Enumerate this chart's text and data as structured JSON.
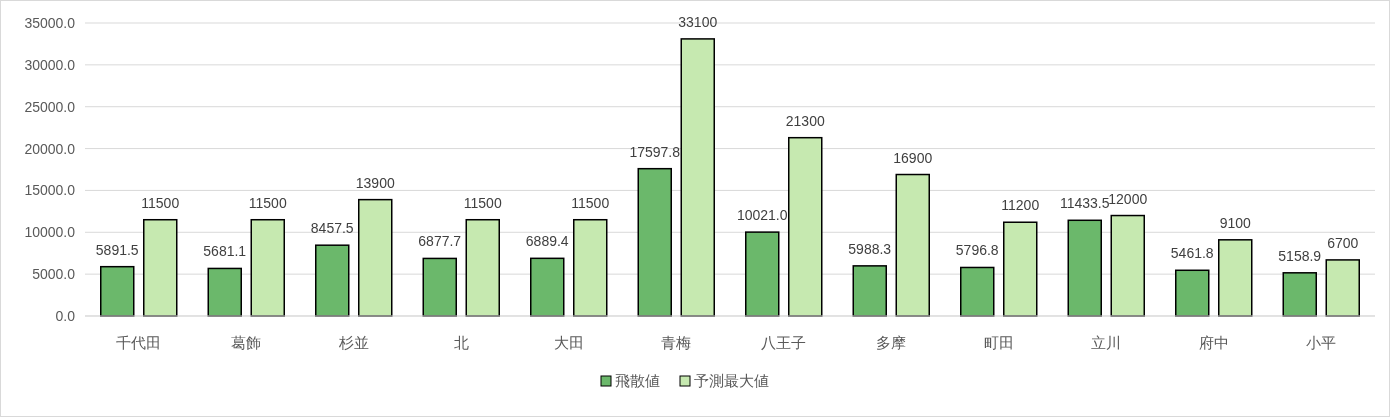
{
  "chart_data": {
    "type": "bar",
    "categories": [
      "千代田",
      "葛飾",
      "杉並",
      "北",
      "大田",
      "青梅",
      "八王子",
      "多摩",
      "町田",
      "立川",
      "府中",
      "小平"
    ],
    "series": [
      {
        "name": "飛散値",
        "color": "#6bb86b",
        "values": [
          5891.5,
          5681.1,
          8457.5,
          6877.7,
          6889.4,
          17597.8,
          10021.0,
          5988.3,
          5796.8,
          11433.5,
          5461.8,
          5158.9
        ],
        "value_labels": [
          "5891.5",
          "5681.1",
          "8457.5",
          "6877.7",
          "6889.4",
          "17597.8",
          "10021.0",
          "5988.3",
          "5796.8",
          "11433.5",
          "5461.8",
          "5158.9"
        ]
      },
      {
        "name": "予測最大値",
        "color": "#c6e9b0",
        "values": [
          11500,
          11500,
          13900,
          11500,
          11500,
          33100,
          21300,
          16900,
          11200,
          12000,
          9100,
          6700
        ],
        "value_labels": [
          "11500",
          "11500",
          "13900",
          "11500",
          "11500",
          "33100",
          "21300",
          "16900",
          "11200",
          "12000",
          "9100",
          "6700"
        ]
      }
    ],
    "ylim": [
      0,
      35000
    ],
    "yticks": [
      {
        "value": 0,
        "label": "0.0"
      },
      {
        "value": 5000,
        "label": "5000.0"
      },
      {
        "value": 10000,
        "label": "10000.0"
      },
      {
        "value": 15000,
        "label": "15000.0"
      },
      {
        "value": 20000,
        "label": "20000.0"
      },
      {
        "value": 25000,
        "label": "25000.0"
      },
      {
        "value": 30000,
        "label": "30000.0"
      },
      {
        "value": 35000,
        "label": "35000.0"
      }
    ],
    "grid": "y",
    "legend": "bottom"
  }
}
